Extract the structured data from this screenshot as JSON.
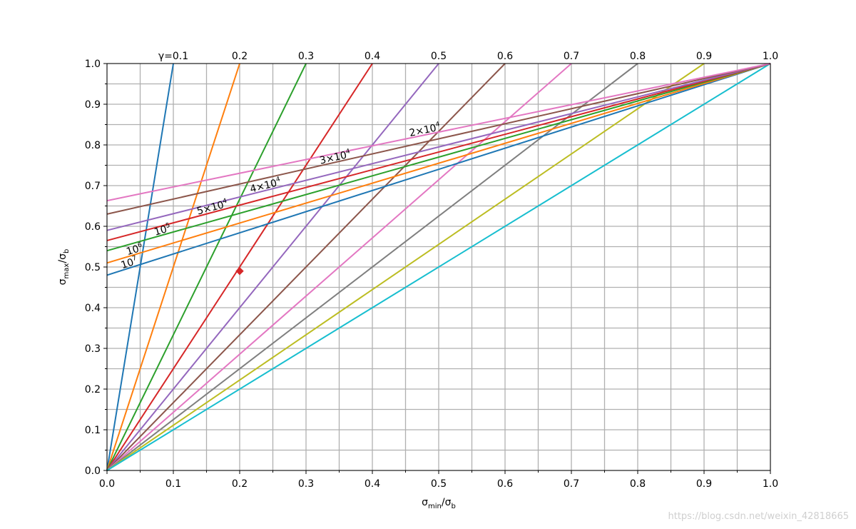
{
  "chart_data": {
    "type": "line",
    "title": "",
    "xlabel": "σmin/σb",
    "ylabel": "σmax/σb",
    "xlim": [
      0,
      1
    ],
    "ylim": [
      0,
      1
    ],
    "grid": true,
    "x_ticks": [
      "0.0",
      "0.1",
      "0.2",
      "0.3",
      "0.4",
      "0.5",
      "0.6",
      "0.7",
      "0.8",
      "0.9",
      "1.0"
    ],
    "y_ticks": [
      "0.0",
      "0.1",
      "0.2",
      "0.3",
      "0.4",
      "0.5",
      "0.6",
      "0.7",
      "0.8",
      "0.9",
      "1.0"
    ],
    "gamma_lines": [
      {
        "label": "γ=0.1",
        "gamma": 0.1,
        "color": "#1f77b4"
      },
      {
        "label": "0.2",
        "gamma": 0.2,
        "color": "#ff7f0e"
      },
      {
        "label": "0.3",
        "gamma": 0.3,
        "color": "#2ca02c"
      },
      {
        "label": "0.4",
        "gamma": 0.4,
        "color": "#d62728"
      },
      {
        "label": "0.5",
        "gamma": 0.5,
        "color": "#9467bd"
      },
      {
        "label": "0.6",
        "gamma": 0.6,
        "color": "#8c564b"
      },
      {
        "label": "0.7",
        "gamma": 0.7,
        "color": "#e377c2"
      },
      {
        "label": "0.8",
        "gamma": 0.8,
        "color": "#7f7f7f"
      },
      {
        "label": "0.9",
        "gamma": 0.9,
        "color": "#bcbd22"
      },
      {
        "label": "1.0",
        "gamma": 1.0,
        "color": "#17becf"
      }
    ],
    "life_lines": [
      {
        "label_base": "10",
        "label_exp": "7",
        "y0": 0.48,
        "color": "#1f77b4"
      },
      {
        "label_base": "10",
        "label_exp": "6",
        "y0": 0.51,
        "color": "#ff7f0e"
      },
      {
        "label_base": "10",
        "label_exp": "5",
        "y0": 0.54,
        "color": "#2ca02c"
      },
      {
        "label_base": "5×10",
        "label_exp": "4",
        "y0": 0.565,
        "color": "#d62728"
      },
      {
        "label_base": "4×10",
        "label_exp": "4",
        "y0": 0.59,
        "color": "#9467bd"
      },
      {
        "label_base": "3×10",
        "label_exp": "4",
        "y0": 0.63,
        "color": "#8c564b"
      },
      {
        "label_base": "2×10",
        "label_exp": "4",
        "y0": 0.663,
        "color": "#e377c2"
      }
    ],
    "marker": {
      "x": 0.2,
      "y": 0.49,
      "color": "#d62728"
    }
  },
  "watermark": "https://blog.csdn.net/weixin_42818665"
}
